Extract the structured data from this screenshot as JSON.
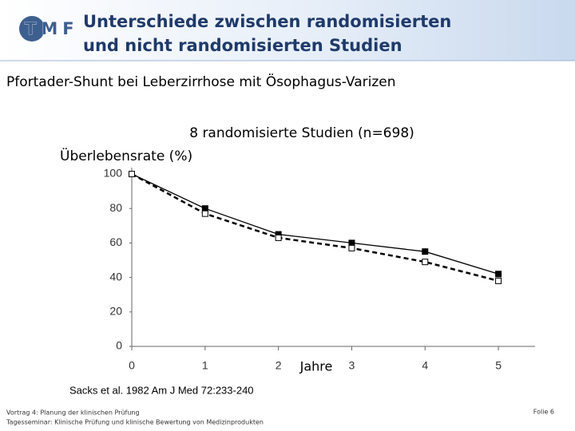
{
  "slide": {
    "logo": "TMF",
    "title": [
      "Unterschiede zwischen randomisierten",
      "und nicht randomisierten Studien"
    ],
    "subtitle": "Pfortader-Shunt bei Leberzirrhose mit Ösophagus-Varizen",
    "citation": "Sacks et al. 1982 Am J Med 72:233-240",
    "footer": [
      "Vortrag 4: Planung der klinischen Prüfung",
      "Tagesseminar: Klinische Prüfung und klinische Bewertung von Medizinprodukten"
    ],
    "page": "Folie 6"
  },
  "chart_data": {
    "type": "line",
    "title": "8 randomisierte Studien (n=698)",
    "y_label": "Überlebensrate (%)",
    "x_label": "Jahre",
    "x": [
      0,
      1,
      2,
      3,
      4,
      5
    ],
    "series": [
      {
        "color": "#000000",
        "dashed": false,
        "marker": "filled",
        "values": [
          100,
          80,
          65,
          60,
          55,
          42
        ]
      },
      {
        "color": "#000000",
        "dashed": true,
        "marker": "open",
        "values": [
          100,
          77,
          63,
          57,
          49,
          38
        ]
      }
    ],
    "xlim": [
      0,
      5.5
    ],
    "xticks": [
      0,
      1,
      2,
      3,
      4,
      5
    ],
    "ylim": [
      0,
      100
    ],
    "yticks": [
      0,
      20,
      40,
      60,
      80,
      100
    ],
    "grid": false
  }
}
